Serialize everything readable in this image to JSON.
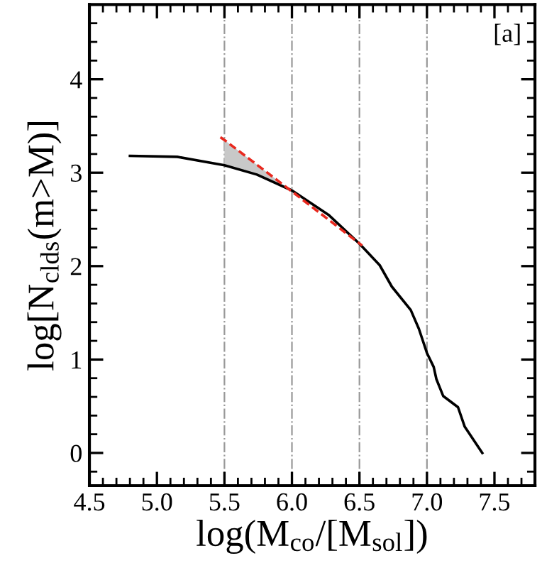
{
  "chart_data": {
    "type": "line",
    "xlabel": "log(M$_{co}$/[M$_{sol}$])",
    "ylabel": "log[N$_{clds}$(m>M)]",
    "xlim": [
      4.5,
      7.8
    ],
    "ylim": [
      -0.35,
      4.8
    ],
    "xticks": [
      4.5,
      {
        "value": 5,
        "label": "5.0"
      },
      5.5,
      {
        "value": 6,
        "label": "6.0"
      },
      6.5,
      {
        "value": 7,
        "label": "7.0"
      },
      7.5
    ],
    "yticks": [
      0,
      1,
      2,
      3,
      4
    ],
    "annotations": [
      "[a]"
    ],
    "ref_lines": [
      {
        "axis": "x",
        "value": 5.5,
        "color": "#999999",
        "line_style": "dashdot"
      },
      {
        "axis": "x",
        "value": 6.0,
        "color": "#999999",
        "line_style": "dashdot"
      },
      {
        "axis": "x",
        "value": 6.5,
        "color": "#999999",
        "line_style": "dashdot"
      },
      {
        "axis": "x",
        "value": 7.0,
        "color": "#999999",
        "line_style": "dashdot"
      }
    ],
    "series": [
      {
        "color": "#000000",
        "line_style": "solid",
        "x": [
          4.8,
          5.15,
          5.5,
          5.74,
          6.0,
          6.27,
          6.5,
          6.65,
          6.74,
          6.88,
          6.94,
          7.0,
          7.05,
          7.07,
          7.12,
          7.23,
          7.28,
          7.41
        ],
        "values": [
          3.18,
          3.17,
          3.08,
          2.98,
          2.81,
          2.55,
          2.24,
          2.01,
          1.78,
          1.53,
          1.33,
          1.07,
          0.92,
          0.79,
          0.61,
          0.49,
          0.28,
          0.0
        ]
      },
      {
        "color": "#e8281e",
        "line_style": "dashed",
        "x": [
          5.47,
          5.5,
          5.7,
          5.9,
          6.52
        ],
        "values": [
          3.38,
          3.35,
          3.13,
          2.91,
          2.22
        ],
        "lower": [
          null,
          3.08,
          3.0,
          2.87,
          null
        ],
        "upper": [
          null,
          3.35,
          3.13,
          2.91,
          null
        ]
      }
    ]
  }
}
